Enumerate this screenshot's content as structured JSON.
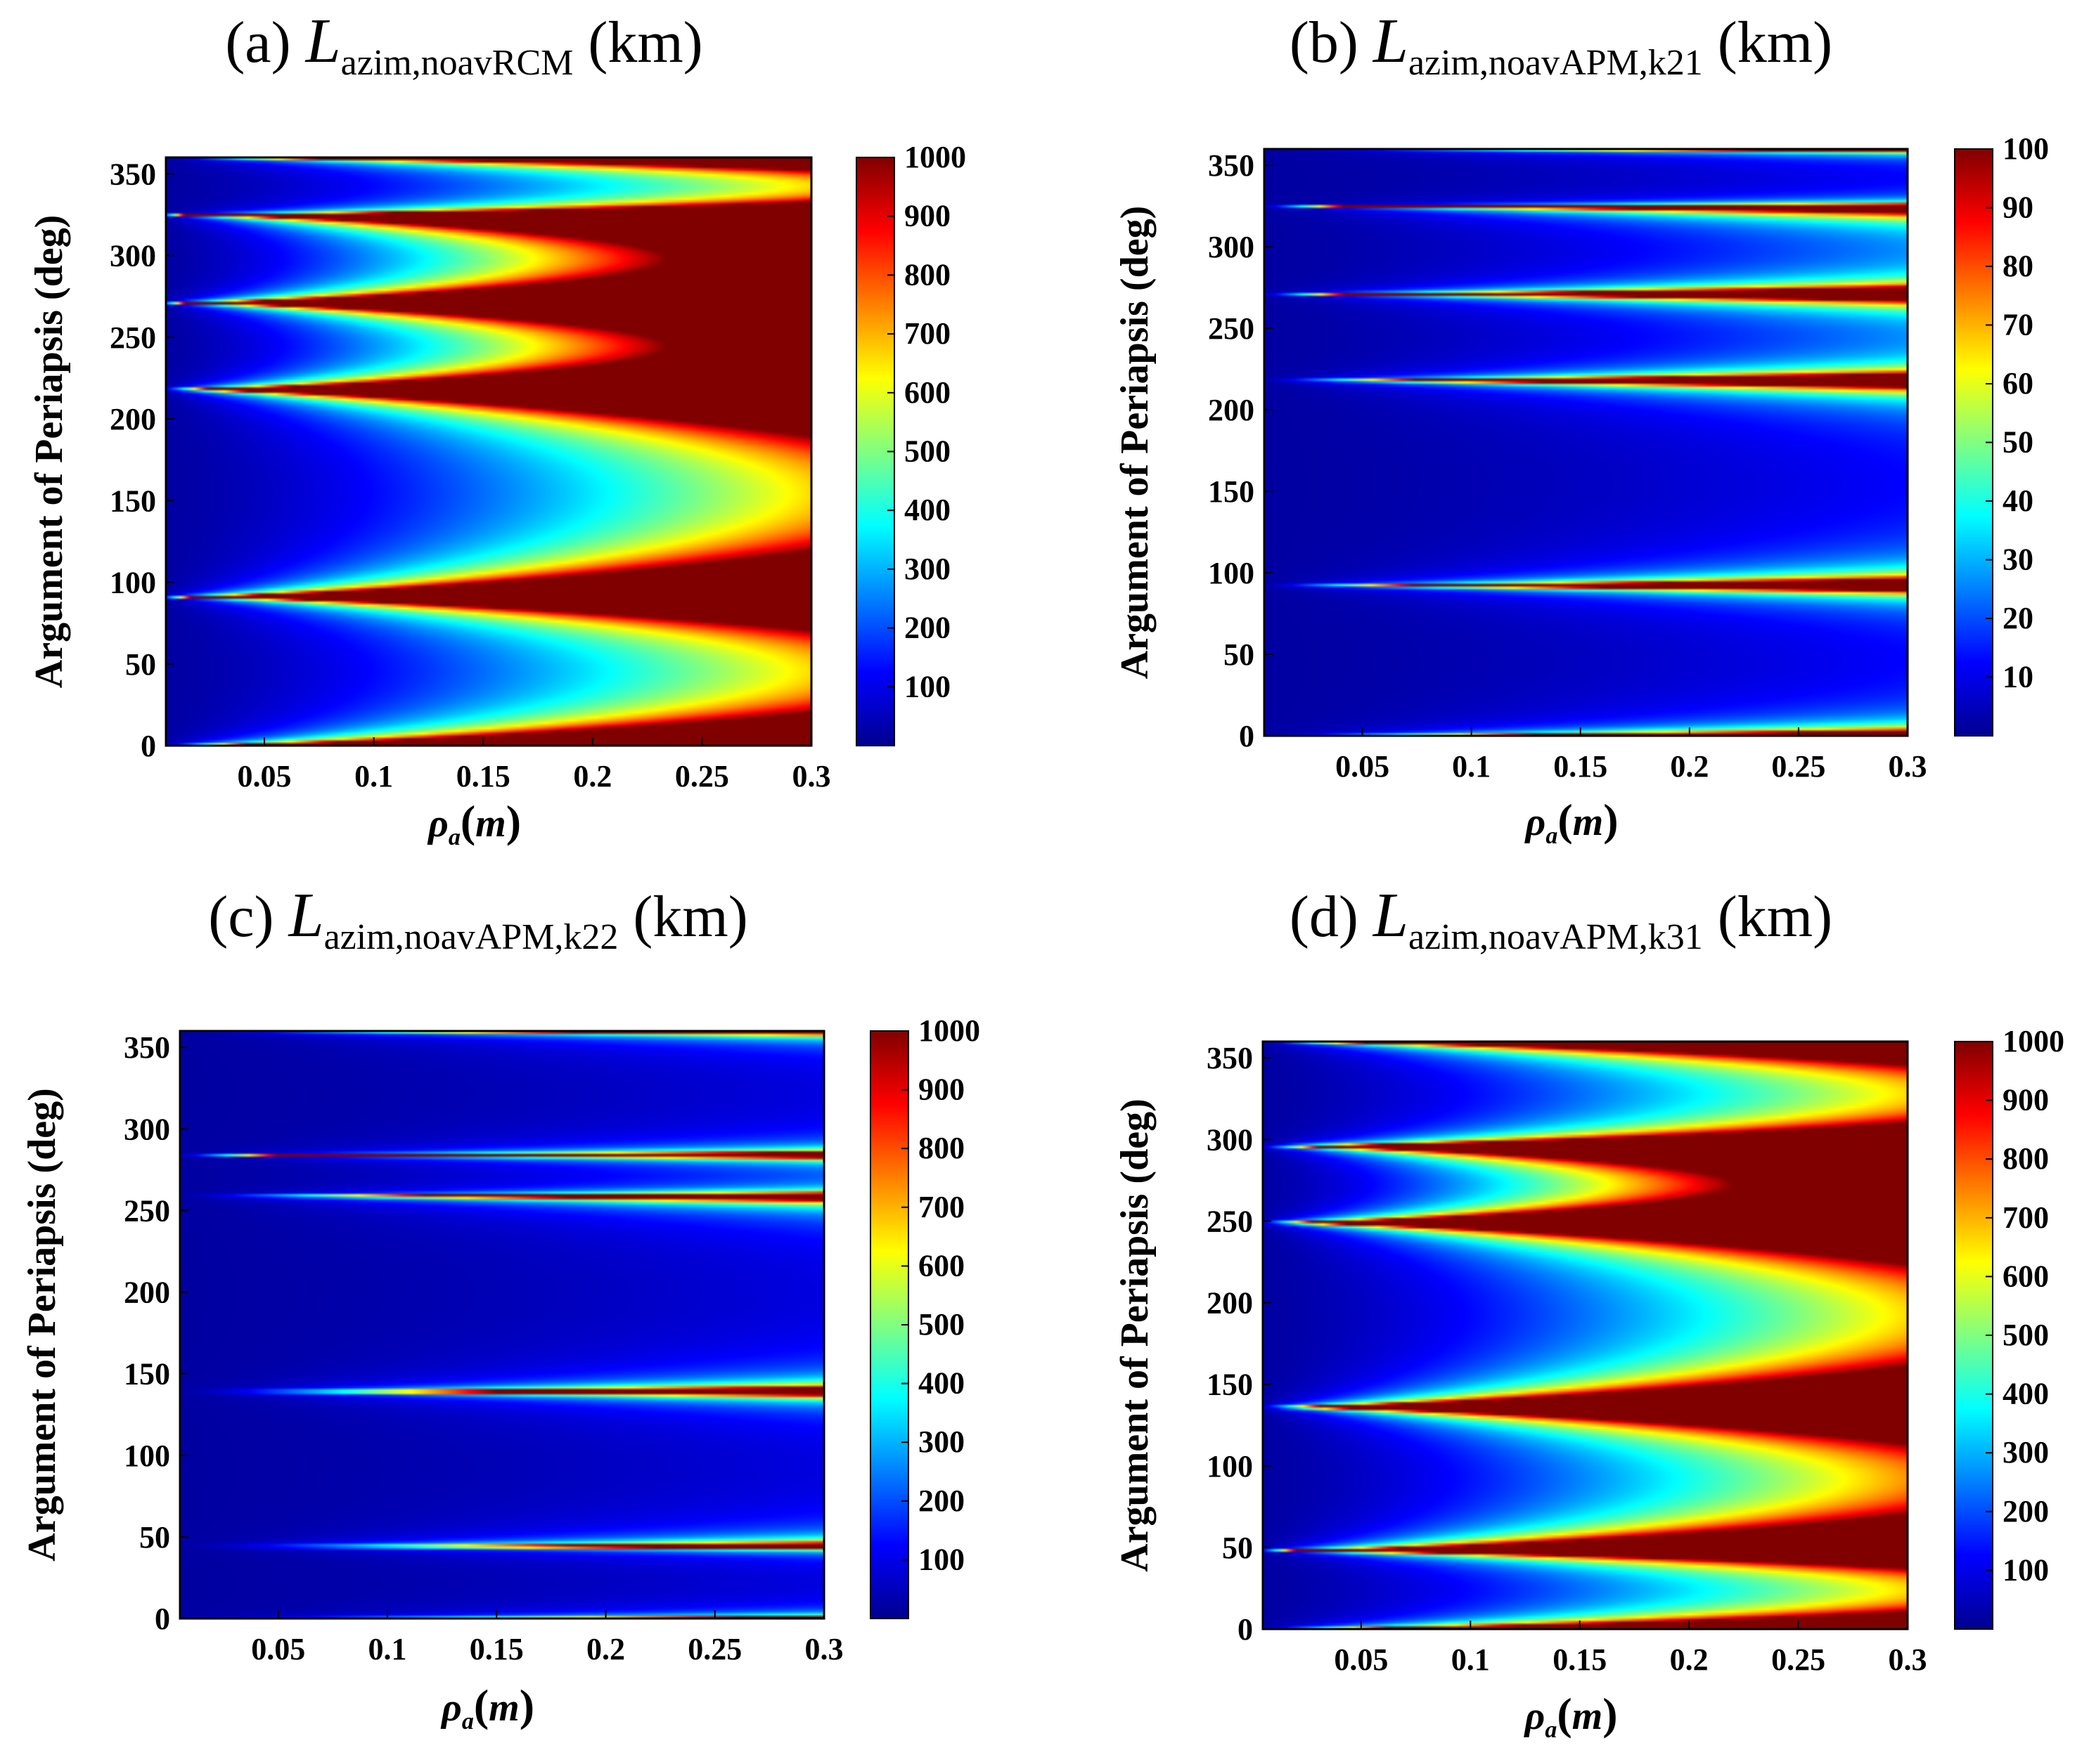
{
  "colors": {
    "jet": [
      "#00008f",
      "#0000ff",
      "#0080ff",
      "#00ffff",
      "#80ff80",
      "#ffff00",
      "#ff8000",
      "#ff0000",
      "#800000"
    ],
    "frame": "#000000",
    "background": "#ffffff"
  },
  "chart_data": [
    {
      "type": "heatmap",
      "panel": "(a)",
      "title_symbol": "L",
      "title_subscript": "azim,noavRCM",
      "title_unit": "(km)",
      "xlabel_symbol": "ρ",
      "xlabel_subscript": "a",
      "xlabel_unit": "m",
      "ylabel": "Argument of Periapsis (deg)",
      "xlim": [
        0.005,
        0.3
      ],
      "ylim": [
        0,
        360
      ],
      "x_ticks": [
        0.05,
        0.1,
        0.15,
        0.2,
        0.25,
        0.3
      ],
      "x_tick_labels": [
        "0.05",
        "0.1",
        "0.15",
        "0.2",
        "0.25",
        "0.3"
      ],
      "y_ticks": [
        0,
        50,
        100,
        150,
        200,
        250,
        300,
        350
      ],
      "y_tick_labels": [
        "0",
        "50",
        "100",
        "150",
        "200",
        "250",
        "300",
        "350"
      ],
      "colorbar_range": [
        0,
        1000
      ],
      "colorbar_ticks": [
        100,
        200,
        300,
        400,
        500,
        600,
        700,
        800,
        900,
        1000
      ],
      "colorbar_tick_labels": [
        "100",
        "200",
        "300",
        "400",
        "500",
        "600",
        "700",
        "800",
        "900",
        "1000"
      ],
      "singular_angles_deg": [
        91,
        218,
        271,
        325
      ],
      "lobes": [
        {
          "y_range_deg": [
            0,
            91
          ],
          "scale": 0.05
        },
        {
          "y_range_deg": [
            91,
            218
          ],
          "scale": 0.05
        },
        {
          "y_range_deg": [
            218,
            271
          ],
          "scale": 0.022
        },
        {
          "y_range_deg": [
            271,
            325
          ],
          "scale": 0.022
        },
        {
          "y_range_deg": [
            325,
            360
          ],
          "scale": 0.05
        }
      ]
    },
    {
      "type": "heatmap",
      "panel": "(b)",
      "title_symbol": "L",
      "title_subscript": "azim,noavAPM,k21",
      "title_unit": "(km)",
      "xlabel_symbol": "ρ",
      "xlabel_subscript": "a",
      "xlabel_unit": "m",
      "ylabel": "Argument of Periapsis (deg)",
      "xlim": [
        0.005,
        0.3
      ],
      "ylim": [
        0,
        360
      ],
      "x_ticks": [
        0.05,
        0.1,
        0.15,
        0.2,
        0.25,
        0.3
      ],
      "x_tick_labels": [
        "0.05",
        "0.1",
        "0.15",
        "0.2",
        "0.25",
        "0.3"
      ],
      "y_ticks": [
        0,
        50,
        100,
        150,
        200,
        250,
        300,
        350
      ],
      "y_tick_labels": [
        "0",
        "50",
        "100",
        "150",
        "200",
        "250",
        "300",
        "350"
      ],
      "colorbar_range": [
        0,
        100
      ],
      "colorbar_ticks": [
        10,
        20,
        30,
        40,
        50,
        60,
        70,
        80,
        90,
        100
      ],
      "colorbar_tick_labels": [
        "10",
        "20",
        "30",
        "40",
        "50",
        "60",
        "70",
        "80",
        "90",
        "100"
      ],
      "singular_angles_deg": [
        92,
        218,
        271,
        325
      ],
      "lobes": [
        {
          "y_range_deg": [
            0,
            92
          ],
          "scale": 0.3
        },
        {
          "y_range_deg": [
            92,
            218
          ],
          "scale": 0.3
        },
        {
          "y_range_deg": [
            218,
            271
          ],
          "scale": 0.13
        },
        {
          "y_range_deg": [
            271,
            325
          ],
          "scale": 0.13
        },
        {
          "y_range_deg": [
            325,
            360
          ],
          "scale": 0.3
        }
      ]
    },
    {
      "type": "heatmap",
      "panel": "(c)",
      "title_symbol": "L",
      "title_subscript": "azim,noavAPM,k22",
      "title_unit": "(km)",
      "xlabel_symbol": "ρ",
      "xlabel_subscript": "a",
      "xlabel_unit": "m",
      "ylabel": "Argument of Periapsis (deg)",
      "xlim": [
        0.005,
        0.3
      ],
      "ylim": [
        0,
        360
      ],
      "x_ticks": [
        0.05,
        0.1,
        0.15,
        0.2,
        0.25,
        0.3
      ],
      "x_tick_labels": [
        "0.05",
        "0.1",
        "0.15",
        "0.2",
        "0.25",
        "0.3"
      ],
      "y_ticks": [
        0,
        50,
        100,
        150,
        200,
        250,
        300,
        350
      ],
      "y_tick_labels": [
        "0",
        "50",
        "100",
        "150",
        "200",
        "250",
        "300",
        "350"
      ],
      "colorbar_range": [
        0,
        1000
      ],
      "colorbar_ticks": [
        100,
        200,
        300,
        400,
        500,
        600,
        700,
        800,
        900,
        1000
      ],
      "colorbar_tick_labels": [
        "100",
        "200",
        "300",
        "400",
        "500",
        "600",
        "700",
        "800",
        "900",
        "1000"
      ],
      "singular_angles_deg": [
        44,
        139,
        259,
        284
      ],
      "lobes": [
        {
          "y_range_deg": [
            0,
            44
          ],
          "scale": 0.45
        },
        {
          "y_range_deg": [
            44,
            139
          ],
          "scale": 0.45
        },
        {
          "y_range_deg": [
            139,
            259
          ],
          "scale": 0.45
        },
        {
          "y_range_deg": [
            259,
            284
          ],
          "scale": 0.16
        },
        {
          "y_range_deg": [
            284,
            360
          ],
          "scale": 0.45
        }
      ]
    },
    {
      "type": "heatmap",
      "panel": "(d)",
      "title_symbol": "L",
      "title_subscript": "azim,noavAPM,k31",
      "title_unit": "(km)",
      "xlabel_symbol": "ρ",
      "xlabel_subscript": "a",
      "xlabel_unit": "m",
      "ylabel": "Argument of Periapsis (deg)",
      "xlim": [
        0.005,
        0.3
      ],
      "ylim": [
        0,
        360
      ],
      "x_ticks": [
        0.05,
        0.1,
        0.15,
        0.2,
        0.25,
        0.3
      ],
      "x_tick_labels": [
        "0.05",
        "0.1",
        "0.15",
        "0.2",
        "0.25",
        "0.3"
      ],
      "y_ticks": [
        0,
        50,
        100,
        150,
        200,
        250,
        300,
        350
      ],
      "y_tick_labels": [
        "0",
        "50",
        "100",
        "150",
        "200",
        "250",
        "300",
        "350"
      ],
      "colorbar_range": [
        0,
        1000
      ],
      "colorbar_ticks": [
        100,
        200,
        300,
        400,
        500,
        600,
        700,
        800,
        900,
        1000
      ],
      "colorbar_tick_labels": [
        "100",
        "200",
        "300",
        "400",
        "500",
        "600",
        "700",
        "800",
        "900",
        "1000"
      ],
      "singular_angles_deg": [
        48,
        136,
        249,
        296
      ],
      "lobes": [
        {
          "y_range_deg": [
            0,
            48
          ],
          "scale": 0.05
        },
        {
          "y_range_deg": [
            48,
            136
          ],
          "scale": 0.045
        },
        {
          "y_range_deg": [
            136,
            249
          ],
          "scale": 0.05
        },
        {
          "y_range_deg": [
            249,
            296
          ],
          "scale": 0.02
        },
        {
          "y_range_deg": [
            296,
            360
          ],
          "scale": 0.05
        }
      ]
    }
  ]
}
